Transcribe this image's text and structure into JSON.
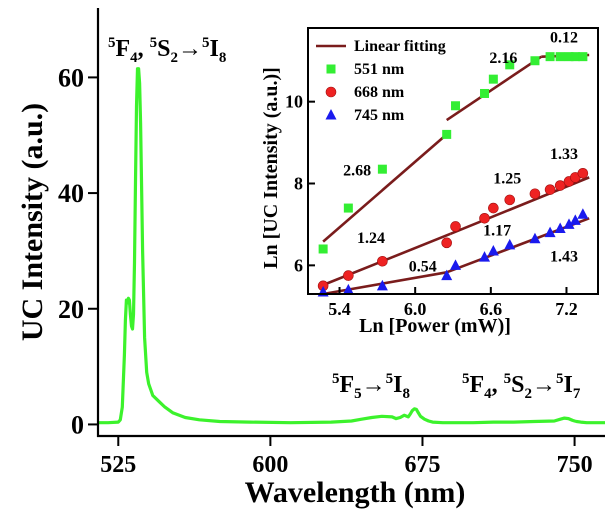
{
  "chart_data": [
    {
      "type": "line",
      "xlabel": "Wavelength (nm)",
      "ylabel": "UC Intensity (a.u.)",
      "xlim": [
        515,
        765
      ],
      "ylim": [
        -2,
        72
      ],
      "xticks": [
        "525",
        "600",
        "675",
        "750"
      ],
      "yticks": [
        "0",
        "20",
        "40",
        "60"
      ],
      "color": "#3cf22c",
      "series": [
        {
          "x": [
            515,
            520,
            525,
            526,
            527,
            528,
            528.5,
            529,
            529.5,
            530,
            530.5,
            531,
            531.5,
            532,
            532.5,
            533,
            533.5,
            534,
            534.5,
            535,
            535.5,
            536,
            537,
            538,
            539,
            540,
            542,
            545,
            548,
            552,
            558,
            565,
            575,
            590,
            610,
            630,
            640,
            645,
            650,
            655,
            660,
            662,
            664,
            666,
            668,
            669,
            670,
            671,
            672,
            673,
            674,
            676,
            678,
            680,
            685,
            690,
            700,
            710,
            720,
            730,
            740,
            743,
            745,
            747,
            749,
            750,
            751,
            753,
            756,
            760,
            765
          ],
          "y": [
            0.3,
            0.3,
            0.4,
            0.8,
            3,
            12,
            18,
            21.5,
            21,
            21.8,
            21.5,
            19,
            17,
            16.5,
            19,
            28,
            42,
            55,
            61.5,
            61.5,
            59,
            52,
            30,
            15,
            9,
            7,
            5,
            4,
            3,
            2,
            1.2,
            0.8,
            0.5,
            0.4,
            0.3,
            0.4,
            0.6,
            0.9,
            1.2,
            1.4,
            1.3,
            1.0,
            1.2,
            1.6,
            1.3,
            1.8,
            2.4,
            2.7,
            2.6,
            2.0,
            1.4,
            0.9,
            0.6,
            0.4,
            0.3,
            0.3,
            0.3,
            0.4,
            0.4,
            0.5,
            0.6,
            0.9,
            1.1,
            1.0,
            0.7,
            0.6,
            0.5,
            0.4,
            0.3,
            0.3,
            0.3
          ]
        }
      ],
      "annotations": [
        {
          "id": "green",
          "text_a": "5",
          "text_b": "F",
          "text_c": "4",
          "text_d": ", ",
          "text_e": "5",
          "text_f": "S",
          "text_g": "2",
          "text_h": "→",
          "text_i": "5",
          "text_j": "I",
          "text_k": "8"
        },
        {
          "id": "red",
          "text_a": "5",
          "text_b": "F",
          "text_c": "5",
          "text_d": "→",
          "text_e": "5",
          "text_f": "I",
          "text_g": "8"
        },
        {
          "id": "nir",
          "text_a": "5",
          "text_b": "F",
          "text_c": "4",
          "text_d": ", ",
          "text_e": "5",
          "text_f": "S",
          "text_g": "2",
          "text_h": "→",
          "text_i": "5",
          "text_j": "I",
          "text_k": "7"
        }
      ]
    },
    {
      "type": "scatter",
      "xlabel": "Ln [Power (mW)]",
      "ylabel": "Ln [UC Intensity (a.u.)]",
      "xlim": [
        5.15,
        7.45
      ],
      "ylim": [
        5.3,
        11.8
      ],
      "xticks": [
        "5.4",
        "6.0",
        "6.6",
        "7.2"
      ],
      "yticks": [
        "6",
        "8",
        "10"
      ],
      "legend_position": "top-left",
      "legend": [
        {
          "label": "Linear fitting",
          "color": "#7a1c1c",
          "marker": "line"
        },
        {
          "label": "551 nm",
          "color": "#33ee33",
          "marker": "square"
        },
        {
          "label": "668 nm",
          "color": "#ee2222",
          "marker": "circle"
        },
        {
          "label": "745 nm",
          "color": "#1a1aee",
          "marker": "triangle"
        }
      ],
      "series": [
        {
          "name": "551 nm",
          "color": "#33ee33",
          "marker": "square",
          "x": [
            5.27,
            5.47,
            5.74,
            6.25,
            6.32,
            6.55,
            6.62,
            6.75,
            6.95,
            7.07,
            7.15,
            7.22,
            7.27,
            7.33
          ],
          "y": [
            6.4,
            7.4,
            8.35,
            9.2,
            9.9,
            10.2,
            10.55,
            10.9,
            11.0,
            11.1,
            11.1,
            11.1,
            11.1,
            11.1
          ]
        },
        {
          "name": "668 nm",
          "color": "#ee2222",
          "marker": "circle",
          "x": [
            5.27,
            5.47,
            5.74,
            6.25,
            6.32,
            6.55,
            6.62,
            6.75,
            6.95,
            7.07,
            7.15,
            7.22,
            7.27,
            7.33
          ],
          "y": [
            5.5,
            5.75,
            6.1,
            6.55,
            6.95,
            7.15,
            7.4,
            7.6,
            7.75,
            7.85,
            7.95,
            8.05,
            8.15,
            8.25
          ]
        },
        {
          "name": "745 nm",
          "color": "#1a1aee",
          "marker": "triangle",
          "x": [
            5.27,
            5.47,
            5.74,
            6.25,
            6.32,
            6.55,
            6.62,
            6.75,
            6.95,
            7.07,
            7.15,
            7.22,
            7.27,
            7.33
          ],
          "y": [
            5.35,
            5.4,
            5.5,
            5.75,
            6.0,
            6.2,
            6.35,
            6.5,
            6.65,
            6.8,
            6.9,
            7.0,
            7.1,
            7.25
          ]
        }
      ],
      "fits": [
        {
          "color": "#7a1c1c",
          "x": [
            5.27,
            6.25
          ],
          "y": [
            6.58,
            9.2
          ]
        },
        {
          "color": "#7a1c1c",
          "x": [
            6.25,
            7.0
          ],
          "y": [
            9.55,
            11.1
          ]
        },
        {
          "color": "#7a1c1c",
          "x": [
            7.0,
            7.38
          ],
          "y": [
            11.1,
            11.14
          ]
        },
        {
          "color": "#7a1c1c",
          "x": [
            5.27,
            6.28
          ],
          "y": [
            5.52,
            6.77
          ]
        },
        {
          "color": "#7a1c1c",
          "x": [
            6.28,
            7.38
          ],
          "y": [
            6.77,
            8.15
          ]
        },
        {
          "color": "#7a1c1c",
          "x": [
            5.27,
            6.25
          ],
          "y": [
            5.3,
            5.83
          ]
        },
        {
          "color": "#7a1c1c",
          "x": [
            6.25,
            7.38
          ],
          "y": [
            5.83,
            7.15
          ]
        }
      ],
      "slope_labels": [
        {
          "text": "2.68",
          "x": 5.54,
          "y": 8.2
        },
        {
          "text": "2.16",
          "x": 6.7,
          "y": 10.95
        },
        {
          "text": "0.12",
          "x": 7.18,
          "y": 11.45
        },
        {
          "text": "1.24",
          "x": 5.65,
          "y": 6.55
        },
        {
          "text": "1.25",
          "x": 6.73,
          "y": 8.0
        },
        {
          "text": "1.33",
          "x": 7.18,
          "y": 8.6
        },
        {
          "text": "0.54",
          "x": 6.06,
          "y": 5.85
        },
        {
          "text": "1.17",
          "x": 6.65,
          "y": 6.73
        },
        {
          "text": "1.43",
          "x": 7.18,
          "y": 6.1
        }
      ]
    }
  ]
}
